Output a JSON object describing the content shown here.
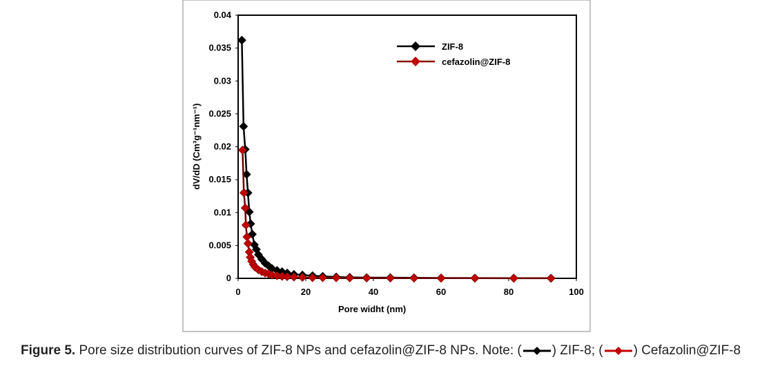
{
  "chart_data": {
    "type": "line",
    "title": "",
    "xlabel": "Pore widht (nm)",
    "ylabel": "dV/dD (Cm³g⁻¹nm⁻¹)",
    "xlim": [
      0,
      100
    ],
    "ylim": [
      0,
      0.04
    ],
    "xticks": [
      0,
      20,
      40,
      60,
      80,
      100
    ],
    "yticks": [
      0,
      0.005,
      0.01,
      0.015,
      0.02,
      0.025,
      0.03,
      0.035,
      0.04
    ],
    "ytick_labels": [
      "0",
      "0.005",
      "0.01",
      "0.015",
      "0.02",
      "0.025",
      "0.03",
      "0.035",
      "0.04"
    ],
    "grid": false,
    "legend_position": "top-right",
    "series": [
      {
        "name": "ZIF-8",
        "color": "#000000",
        "x": [
          1.1,
          1.6,
          2.1,
          2.5,
          2.9,
          3.3,
          3.7,
          4.2,
          4.8,
          5.4,
          6,
          7,
          8,
          9,
          10,
          11.5,
          13,
          14.5,
          16.5,
          19,
          22,
          25,
          29,
          33,
          38,
          45,
          52,
          60,
          70,
          81.5,
          92.5
        ],
        "y": [
          0.0362,
          0.0231,
          0.0196,
          0.0158,
          0.013,
          0.0101,
          0.0083,
          0.0067,
          0.0051,
          0.0044,
          0.0036,
          0.0029,
          0.0023,
          0.0019,
          0.0015,
          0.0012,
          0.001,
          0.0008,
          0.0006,
          0.0005,
          0.0004,
          0.0003,
          0.0002,
          0.00015,
          0.0001,
          0.0001,
          8e-05,
          5e-05,
          4e-05,
          3e-05,
          2e-05
        ]
      },
      {
        "name": "cefazolin@ZIF-8",
        "color": "#c00000",
        "x": [
          1.3,
          1.7,
          2.1,
          2.3,
          2.6,
          2.9,
          3.3,
          3.6,
          4,
          4.5,
          5,
          6,
          7,
          8,
          9,
          10,
          11.5,
          13,
          14.5,
          16.5,
          19,
          22,
          25,
          29,
          33,
          38,
          45,
          52,
          60,
          70,
          81.5,
          92.5
        ],
        "y": [
          0.0195,
          0.013,
          0.0107,
          0.0081,
          0.0063,
          0.0053,
          0.004,
          0.0032,
          0.0026,
          0.0021,
          0.0017,
          0.0013,
          0.001,
          0.0008,
          0.0007,
          0.0005,
          0.0004,
          0.0003,
          0.00025,
          0.0002,
          0.00015,
          0.0001,
          0.0001,
          8e-05,
          6e-05,
          5e-05,
          4e-05,
          3e-05,
          2e-05,
          2e-05,
          1e-05,
          1e-05
        ]
      }
    ]
  },
  "caption": {
    "label": "Figure 5.",
    "text": "Pore size distribution curves of ZIF-8 NPs and cefazolin@ZIF-8 NPs. Note: (",
    "note1": ") ZIF-8; (",
    "note2": ") Cefazolin@ZIF-8"
  }
}
